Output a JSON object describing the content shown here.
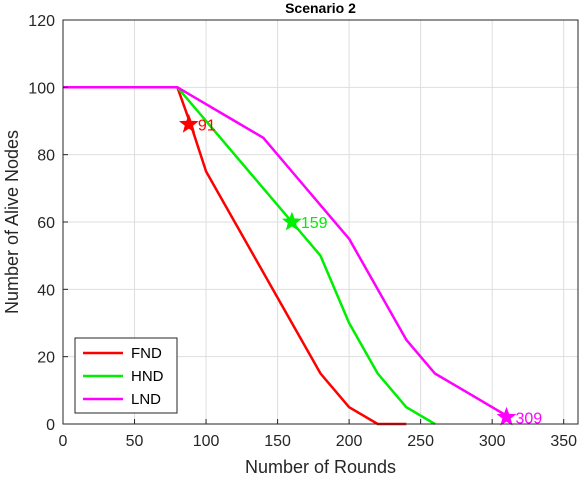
{
  "chart_data": {
    "type": "line",
    "title": "Scenario 2",
    "xlabel": "Number of Rounds",
    "ylabel": "Number of Alive Nodes",
    "xlim": [
      0,
      360
    ],
    "ylim": [
      0,
      120
    ],
    "xticks": [
      0,
      50,
      100,
      150,
      200,
      250,
      300,
      350
    ],
    "yticks": [
      0,
      20,
      40,
      60,
      80,
      100,
      120
    ],
    "grid": true,
    "legend_position": "bottom-left",
    "series": [
      {
        "name": "FND",
        "color": "#ff0000",
        "x": [
          0,
          80,
          90,
          100,
          120,
          140,
          160,
          180,
          200,
          220,
          240
        ],
        "y": [
          100,
          100,
          88,
          75,
          60,
          45,
          30,
          15,
          5,
          0,
          0
        ]
      },
      {
        "name": "HND",
        "color": "#00ee00",
        "x": [
          0,
          80,
          100,
          120,
          140,
          160,
          180,
          200,
          220,
          240,
          260
        ],
        "y": [
          100,
          100,
          90,
          80,
          70,
          60,
          50,
          30,
          15,
          5,
          0
        ]
      },
      {
        "name": "LND",
        "color": "#ff00ff",
        "x": [
          0,
          80,
          100,
          120,
          140,
          160,
          180,
          200,
          220,
          240,
          260,
          280,
          300,
          312
        ],
        "y": [
          100,
          100,
          95,
          90,
          85,
          75,
          65,
          55,
          40,
          25,
          15,
          10,
          5,
          2
        ]
      }
    ],
    "annotations": [
      {
        "label": "91",
        "x": 88,
        "y": 89,
        "color": "#ff0000",
        "series": "FND"
      },
      {
        "label": "159",
        "x": 160,
        "y": 60,
        "color": "#00ee00",
        "series": "HND"
      },
      {
        "label": "309",
        "x": 310,
        "y": 2,
        "color": "#ff00ff",
        "series": "LND"
      }
    ]
  }
}
